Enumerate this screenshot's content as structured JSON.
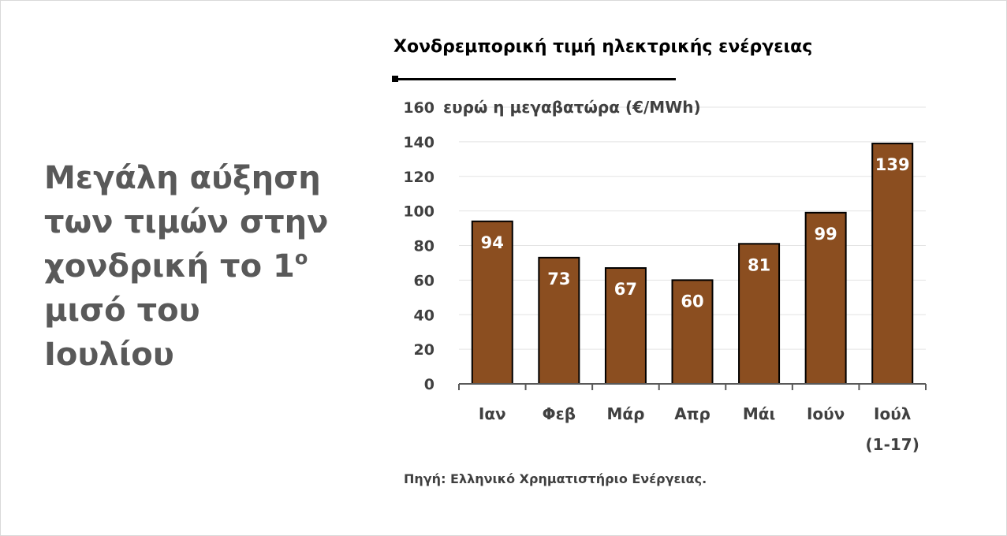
{
  "headline": {
    "lines": [
      "Μεγάλη αύξηση",
      "των τιμών στην",
      "χονδρική το 1",
      "μισό του",
      "Ιουλίου"
    ],
    "superscript": "ο"
  },
  "chart_data": {
    "type": "bar",
    "title": "Χονδρεμπορική τιμή ηλεκτρικής ενέργειας",
    "ylabel": "ευρώ η μεγαβατώρα (€/MWh)",
    "xlabel": "",
    "categories": [
      [
        "Ιαν"
      ],
      [
        "Φεβ"
      ],
      [
        "Μάρ"
      ],
      [
        "Απρ"
      ],
      [
        "Μάι"
      ],
      [
        "Ιούν"
      ],
      [
        "Ιούλ",
        "(1-17)"
      ]
    ],
    "values": [
      94,
      73,
      67,
      60,
      81,
      99,
      139
    ],
    "data_labels": [
      "94",
      "73",
      "67",
      "60",
      "81",
      "99",
      "139"
    ],
    "ylim": [
      0,
      160
    ],
    "yticks": [
      0,
      20,
      40,
      60,
      80,
      100,
      120,
      140,
      160
    ],
    "grid": true,
    "legend": "none",
    "colors": {
      "bar": "#8b4e20",
      "bar_outline": "#000000",
      "grid": "#e3e3e3",
      "axis": "#595959"
    },
    "source": "Πηγή: Ελληνικό Χρηματιστήριο Ενέργειας."
  }
}
